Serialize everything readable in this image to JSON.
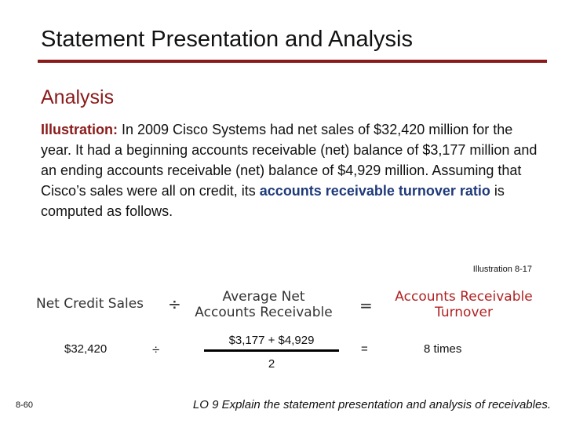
{
  "slide": {
    "title": "Statement Presentation and Analysis",
    "subheading": "Analysis",
    "paragraph": {
      "label": "Illustration:",
      "text_before": "  In 2009 Cisco Systems had net sales of $32,420 million for the year.  It had a beginning accounts receivable (net) balance of $3,177 million and an ending accounts receivable (net) balance of $4,929 million. Assuming that Cisco’s sales were all on credit, its ",
      "highlight": "accounts receivable turnover ratio",
      "text_after": " is computed as follows."
    },
    "illustration_ref": "Illustration 8-17"
  },
  "formula": {
    "numerator_label": "Net Credit Sales",
    "divide_symbol": "÷",
    "denominator_label_line1": "Average Net",
    "denominator_label_line2": "Accounts Receivable",
    "equals_symbol": "=",
    "result_label_line1": "Accounts Receivable",
    "result_label_line2": "Turnover",
    "values": {
      "sales": "$32,420",
      "divide_symbol": "÷",
      "avg_numerator": "$3,177 + $4,929",
      "avg_denominator": "2",
      "equals_symbol": "=",
      "result": "8 times"
    }
  },
  "footer": {
    "slide_number": "8-60",
    "lo_text": "LO 9  Explain the statement presentation and analysis of receivables."
  },
  "colors": {
    "accent": "#8b1a1a",
    "highlight": "#1f3a7a",
    "result_label": "#b22222"
  }
}
